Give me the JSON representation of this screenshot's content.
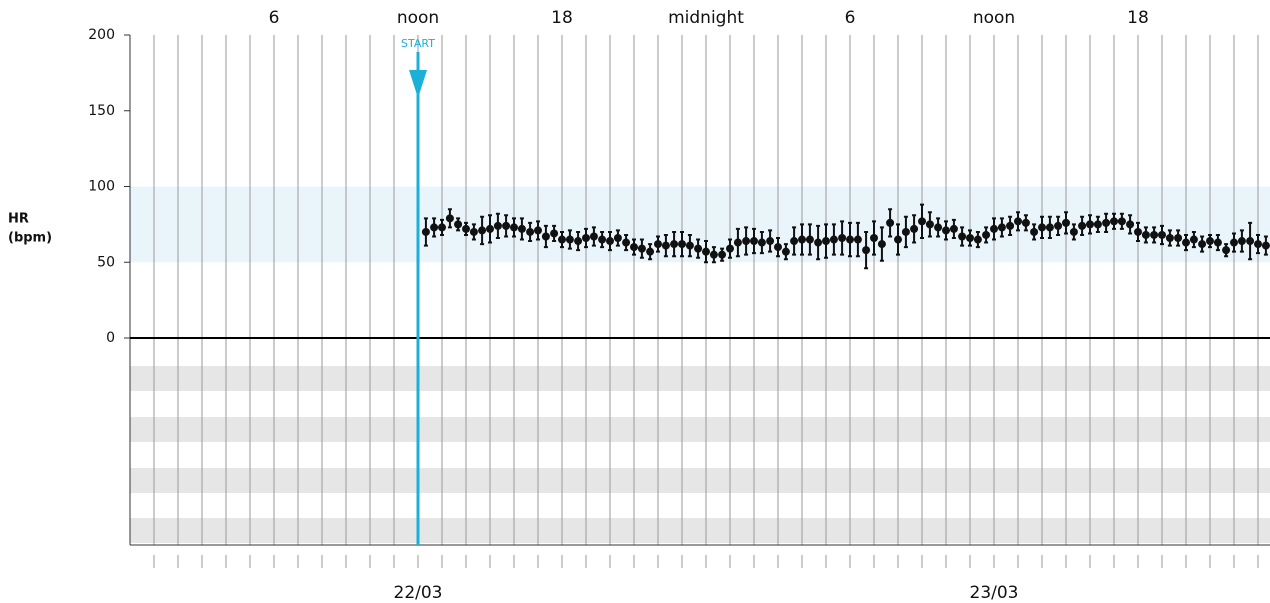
{
  "chart_data": {
    "type": "errorbar",
    "ylabel_lines": [
      "HR",
      "(bpm)"
    ],
    "start": {
      "label": "START",
      "x": 12
    },
    "xlim": [
      0,
      47.5
    ],
    "xticks": [
      6,
      {
        "value": 12,
        "label": "noon"
      },
      18,
      {
        "value": 24,
        "label": "midnight"
      },
      {
        "value": 30,
        "label": "6"
      },
      {
        "value": 36,
        "label": "noon"
      },
      {
        "value": 42,
        "label": "18"
      }
    ],
    "date_ticks": [
      {
        "value": 12,
        "label": "22/03"
      },
      {
        "value": 36,
        "label": "23/03"
      }
    ],
    "xgrid": [
      1,
      2,
      3,
      4,
      5,
      6,
      7,
      8,
      9,
      10,
      11,
      12,
      13,
      14,
      15,
      16,
      17,
      18,
      19,
      20,
      21,
      22,
      23,
      24,
      25,
      26,
      27,
      28,
      29,
      30,
      31,
      32,
      33,
      34,
      35,
      36,
      37,
      38,
      39,
      40,
      41,
      42,
      43,
      44,
      45,
      46,
      47
    ],
    "ylim": [
      0,
      200
    ],
    "yticks": [
      0,
      50,
      100,
      150,
      200
    ],
    "normal_range": [
      50,
      100
    ],
    "color": "#111111",
    "start_color": "#1ab0d8",
    "x": [
      12.33,
      12.67,
      13,
      13.33,
      13.67,
      14,
      14.33,
      14.67,
      15,
      15.33,
      15.67,
      16,
      16.33,
      16.67,
      17,
      17.33,
      17.67,
      18,
      18.33,
      18.67,
      19,
      19.33,
      19.67,
      20,
      20.33,
      20.67,
      21,
      21.33,
      21.67,
      22,
      22.33,
      22.67,
      23,
      23.33,
      23.67,
      24,
      24.33,
      24.67,
      25,
      25.33,
      25.67,
      26,
      26.33,
      26.67,
      27,
      27.33,
      27.67,
      28,
      28.33,
      28.67,
      29,
      29.33,
      29.67,
      30,
      30.33,
      30.67,
      31,
      31.33,
      31.67,
      32,
      32.33,
      32.67,
      33,
      33.33,
      33.67,
      34,
      34.33,
      34.67,
      35,
      35.33,
      35.67,
      36,
      36.33,
      36.67,
      37,
      37.33,
      37.67,
      38,
      38.33,
      38.67,
      39,
      39.33,
      39.67,
      40,
      40.33,
      40.67,
      41,
      41.33,
      41.67,
      42,
      42.33,
      42.67,
      43,
      43.33,
      43.67,
      44,
      44.33,
      44.67,
      45,
      45.33,
      45.67,
      46,
      46.33,
      46.67,
      47,
      47.33
    ],
    "values": [
      70,
      73,
      73,
      79,
      75,
      72,
      70,
      71,
      72,
      74,
      74,
      73,
      72,
      70,
      71,
      67,
      69,
      65,
      65,
      64,
      66,
      67,
      65,
      64,
      66,
      63,
      60,
      59,
      57,
      62,
      61,
      62,
      62,
      61,
      59,
      57,
      55,
      55,
      59,
      63,
      64,
      64,
      63,
      64,
      60,
      57,
      64,
      65,
      65,
      63,
      64,
      65,
      66,
      65,
      65,
      58,
      66,
      62,
      76,
      65,
      70,
      72,
      77,
      75,
      73,
      71,
      72,
      67,
      66,
      65,
      68,
      72,
      73,
      74,
      77,
      76,
      70,
      73,
      73,
      74,
      76,
      70,
      74,
      75,
      75,
      76,
      77,
      77,
      75,
      70,
      68,
      68,
      68,
      66,
      66,
      63,
      65,
      62,
      64,
      63,
      58,
      63,
      64,
      64,
      62,
      61
    ],
    "errors": [
      9,
      6,
      5,
      6,
      4,
      4,
      5,
      9,
      9,
      8,
      7,
      6,
      7,
      6,
      6,
      7,
      5,
      5,
      6,
      6,
      6,
      6,
      5,
      6,
      5,
      5,
      5,
      6,
      5,
      5,
      7,
      8,
      8,
      7,
      6,
      7,
      5,
      4,
      6,
      9,
      9,
      8,
      7,
      7,
      6,
      5,
      9,
      10,
      10,
      11,
      11,
      10,
      11,
      11,
      11,
      12,
      11,
      11,
      9,
      10,
      10,
      9,
      11,
      8,
      6,
      6,
      6,
      6,
      5,
      5,
      5,
      7,
      6,
      6,
      6,
      5,
      5,
      7,
      7,
      6,
      7,
      5,
      6,
      6,
      5,
      6,
      5,
      5,
      6,
      6,
      5,
      5,
      6,
      5,
      5,
      5,
      5,
      5,
      4,
      5,
      4,
      6,
      7,
      12,
      6,
      6
    ]
  }
}
